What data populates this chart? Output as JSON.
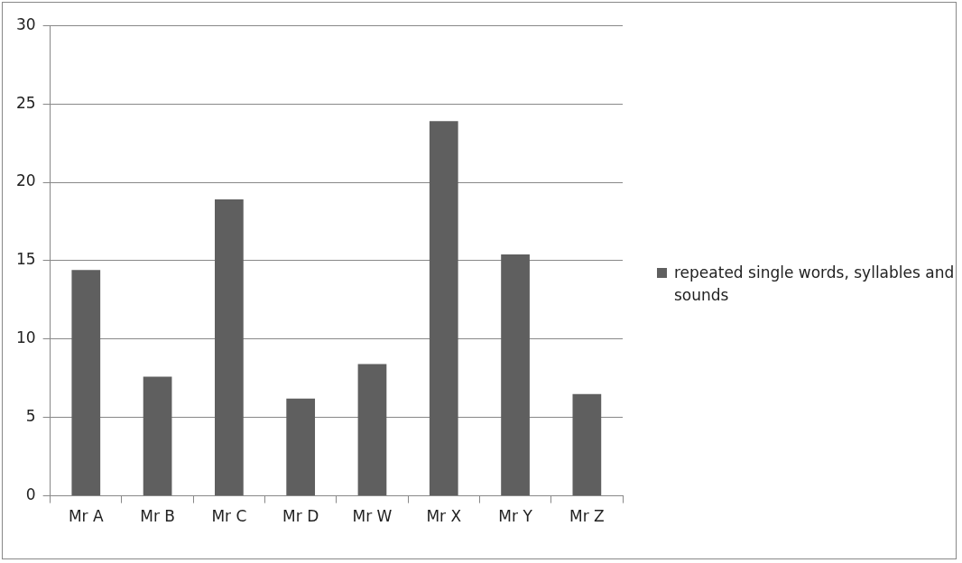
{
  "chart_data": {
    "type": "bar",
    "categories": [
      "Mr A",
      "Mr B",
      "Mr C",
      "Mr D",
      "Mr W",
      "Mr X",
      "Mr Y",
      "Mr Z"
    ],
    "series": [
      {
        "name": "repeated single words, syllables and sounds",
        "color": "#5f5f5f",
        "values": [
          14.4,
          7.6,
          18.9,
          6.2,
          8.4,
          23.9,
          15.4,
          6.5
        ]
      }
    ],
    "ylim": [
      0,
      30
    ],
    "yticks": [
      0,
      5,
      10,
      15,
      20,
      25,
      30
    ],
    "grid": "y",
    "legend": "right"
  }
}
